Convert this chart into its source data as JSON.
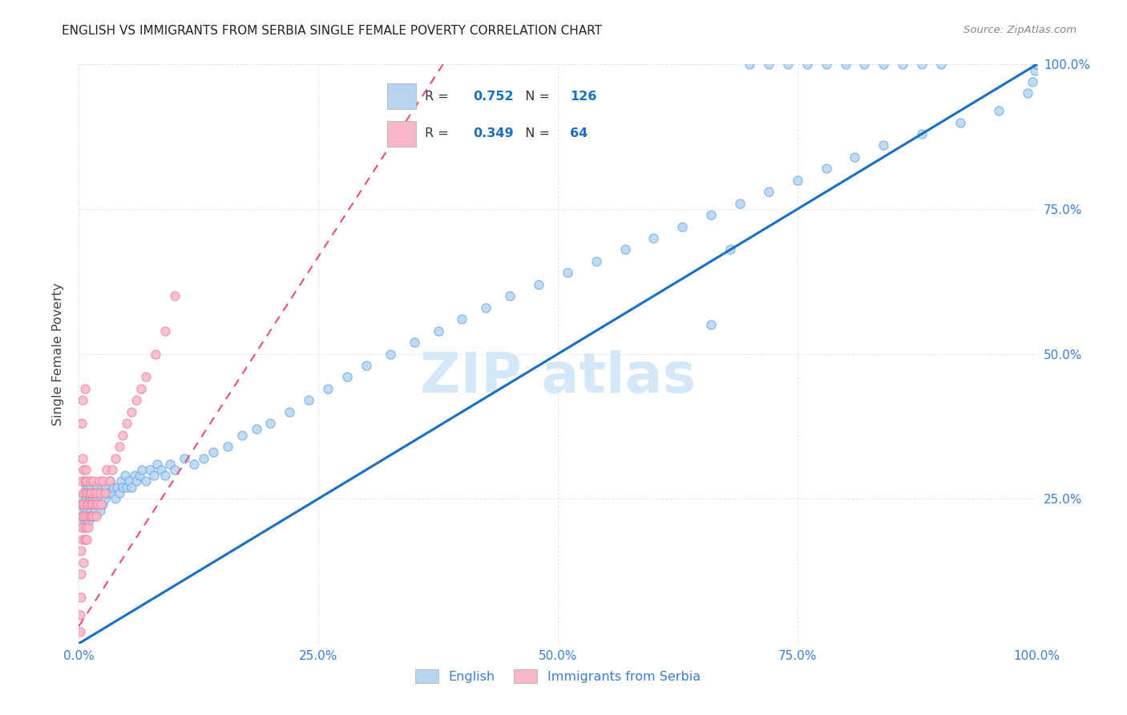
{
  "title": "ENGLISH VS IMMIGRANTS FROM SERBIA SINGLE FEMALE POVERTY CORRELATION CHART",
  "source": "Source: ZipAtlas.com",
  "ylabel": "Single Female Poverty",
  "ytick_vals": [
    0.0,
    0.25,
    0.5,
    0.75,
    1.0
  ],
  "ytick_labels": [
    "",
    "25.0%",
    "50.0%",
    "75.0%",
    "100.0%"
  ],
  "xtick_vals": [
    0.0,
    0.25,
    0.5,
    0.75,
    1.0
  ],
  "xtick_labels": [
    "0.0%",
    "25.0%",
    "50.0%",
    "75.0%",
    "100.0%"
  ],
  "legend_english_r": "0.752",
  "legend_english_n": "126",
  "legend_serbia_r": "0.349",
  "legend_serbia_n": "64",
  "english_fill_color": "#b8d4f0",
  "english_edge_color": "#6aaae8",
  "serbia_fill_color": "#f8b8c8",
  "serbia_edge_color": "#f080a0",
  "english_line_color": "#1a6fc4",
  "serbia_line_color": "#e85070",
  "watermark_color": "#d4e8fa",
  "tick_color": "#3a7fd4",
  "grid_color": "#dde8f0",
  "title_color": "#222222",
  "source_color": "#888888",
  "ylabel_color": "#444444",
  "english_scatter_x": [
    0.002,
    0.003,
    0.003,
    0.004,
    0.004,
    0.005,
    0.005,
    0.005,
    0.006,
    0.006,
    0.007,
    0.007,
    0.008,
    0.008,
    0.009,
    0.009,
    0.01,
    0.01,
    0.01,
    0.011,
    0.011,
    0.012,
    0.012,
    0.013,
    0.013,
    0.014,
    0.015,
    0.015,
    0.016,
    0.017,
    0.018,
    0.019,
    0.02,
    0.021,
    0.022,
    0.023,
    0.024,
    0.025,
    0.026,
    0.027,
    0.028,
    0.03,
    0.032,
    0.034,
    0.036,
    0.038,
    0.04,
    0.042,
    0.044,
    0.046,
    0.048,
    0.05,
    0.052,
    0.055,
    0.058,
    0.06,
    0.063,
    0.066,
    0.07,
    0.074,
    0.078,
    0.082,
    0.086,
    0.09,
    0.095,
    0.1,
    0.11,
    0.12,
    0.13,
    0.14,
    0.155,
    0.17,
    0.185,
    0.2,
    0.22,
    0.24,
    0.26,
    0.28,
    0.3,
    0.325,
    0.35,
    0.375,
    0.4,
    0.425,
    0.45,
    0.48,
    0.51,
    0.54,
    0.57,
    0.6,
    0.63,
    0.66,
    0.69,
    0.72,
    0.75,
    0.78,
    0.81,
    0.84,
    0.88,
    0.92,
    0.96,
    0.99,
    0.995,
    0.998,
    1.0,
    1.0,
    1.0,
    1.0,
    1.0,
    1.0,
    1.0,
    1.0,
    1.0,
    0.7,
    0.72,
    0.74,
    0.76,
    0.78,
    0.8,
    0.82,
    0.84,
    0.86,
    0.88,
    0.9,
    0.68,
    0.66
  ],
  "english_scatter_y": [
    0.21,
    0.23,
    0.25,
    0.22,
    0.24,
    0.2,
    0.22,
    0.26,
    0.21,
    0.23,
    0.25,
    0.27,
    0.22,
    0.24,
    0.23,
    0.26,
    0.21,
    0.24,
    0.27,
    0.22,
    0.25,
    0.23,
    0.26,
    0.24,
    0.27,
    0.25,
    0.22,
    0.26,
    0.24,
    0.23,
    0.25,
    0.27,
    0.24,
    0.26,
    0.23,
    0.25,
    0.27,
    0.24,
    0.26,
    0.25,
    0.27,
    0.26,
    0.28,
    0.26,
    0.27,
    0.25,
    0.27,
    0.26,
    0.28,
    0.27,
    0.29,
    0.27,
    0.28,
    0.27,
    0.29,
    0.28,
    0.29,
    0.3,
    0.28,
    0.3,
    0.29,
    0.31,
    0.3,
    0.29,
    0.31,
    0.3,
    0.32,
    0.31,
    0.32,
    0.33,
    0.34,
    0.36,
    0.37,
    0.38,
    0.4,
    0.42,
    0.44,
    0.46,
    0.48,
    0.5,
    0.52,
    0.54,
    0.56,
    0.58,
    0.6,
    0.62,
    0.64,
    0.66,
    0.68,
    0.7,
    0.72,
    0.74,
    0.76,
    0.78,
    0.8,
    0.82,
    0.84,
    0.86,
    0.88,
    0.9,
    0.92,
    0.95,
    0.97,
    0.99,
    1.0,
    1.0,
    1.0,
    1.0,
    1.0,
    1.0,
    1.0,
    1.0,
    1.0,
    1.0,
    1.0,
    1.0,
    1.0,
    1.0,
    1.0,
    1.0,
    1.0,
    1.0,
    1.0,
    1.0,
    0.68,
    0.55
  ],
  "serbia_scatter_x": [
    0.001,
    0.001,
    0.002,
    0.002,
    0.002,
    0.003,
    0.003,
    0.003,
    0.004,
    0.004,
    0.004,
    0.005,
    0.005,
    0.005,
    0.005,
    0.006,
    0.006,
    0.006,
    0.007,
    0.007,
    0.007,
    0.008,
    0.008,
    0.008,
    0.009,
    0.009,
    0.01,
    0.01,
    0.011,
    0.011,
    0.012,
    0.012,
    0.013,
    0.013,
    0.014,
    0.015,
    0.015,
    0.016,
    0.017,
    0.018,
    0.019,
    0.02,
    0.021,
    0.022,
    0.023,
    0.025,
    0.027,
    0.029,
    0.032,
    0.035,
    0.038,
    0.042,
    0.046,
    0.05,
    0.055,
    0.06,
    0.065,
    0.07,
    0.08,
    0.09,
    0.1,
    0.003,
    0.004,
    0.006
  ],
  "serbia_scatter_y": [
    0.02,
    0.05,
    0.08,
    0.12,
    0.16,
    0.2,
    0.24,
    0.28,
    0.32,
    0.22,
    0.18,
    0.26,
    0.3,
    0.24,
    0.14,
    0.28,
    0.22,
    0.18,
    0.26,
    0.3,
    0.2,
    0.24,
    0.28,
    0.18,
    0.22,
    0.26,
    0.24,
    0.2,
    0.26,
    0.22,
    0.28,
    0.24,
    0.22,
    0.26,
    0.24,
    0.28,
    0.22,
    0.26,
    0.24,
    0.22,
    0.26,
    0.24,
    0.28,
    0.26,
    0.24,
    0.28,
    0.26,
    0.3,
    0.28,
    0.3,
    0.32,
    0.34,
    0.36,
    0.38,
    0.4,
    0.42,
    0.44,
    0.46,
    0.5,
    0.54,
    0.6,
    0.38,
    0.42,
    0.44
  ],
  "english_line_x0": 0.0,
  "english_line_x1": 1.0,
  "english_line_y0": 0.0,
  "english_line_y1": 1.0,
  "serbia_line_x0": 0.0,
  "serbia_line_x1": 0.38,
  "serbia_line_y0": 0.03,
  "serbia_line_y1": 1.0
}
